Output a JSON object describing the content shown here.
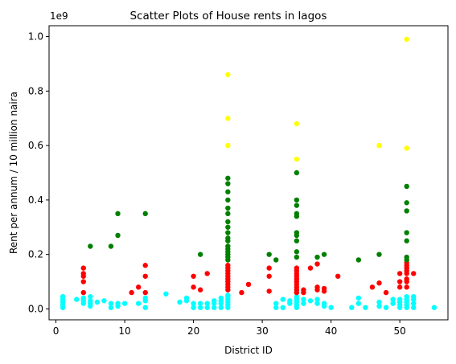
{
  "chart_data": {
    "type": "scatter",
    "title": "Scatter Plots of House rents in lagos",
    "xlabel": "District ID",
    "ylabel": "Rent per annum / 10 million naira",
    "y_offset_text": "1e9",
    "xlim": [
      -1,
      57
    ],
    "ylim": [
      -0.04,
      1.04
    ],
    "xticks": [
      0,
      10,
      20,
      30,
      40,
      50
    ],
    "yticks": [
      0.0,
      0.2,
      0.4,
      0.6,
      0.8,
      1.0
    ],
    "ytick_labels": [
      "0.0",
      "0.2",
      "0.4",
      "0.6",
      "0.8",
      "1.0"
    ],
    "grid": false,
    "legend": "none",
    "series": [
      {
        "color": "#00ffff",
        "points": [
          [
            1,
            0.005
          ],
          [
            1,
            0.015
          ],
          [
            1,
            0.025
          ],
          [
            1,
            0.035
          ],
          [
            1,
            0.045
          ],
          [
            3,
            0.035
          ],
          [
            4,
            0.02
          ],
          [
            4,
            0.03
          ],
          [
            4,
            0.04
          ],
          [
            5,
            0.01
          ],
          [
            5,
            0.02
          ],
          [
            5,
            0.03
          ],
          [
            5,
            0.045
          ],
          [
            6,
            0.025
          ],
          [
            7,
            0.03
          ],
          [
            8,
            0.005
          ],
          [
            8,
            0.02
          ],
          [
            9,
            0.01
          ],
          [
            9,
            0.02
          ],
          [
            10,
            0.02
          ],
          [
            12,
            0.02
          ],
          [
            13,
            0.005
          ],
          [
            13,
            0.03
          ],
          [
            13,
            0.04
          ],
          [
            16,
            0.055
          ],
          [
            18,
            0.025
          ],
          [
            19,
            0.03
          ],
          [
            19,
            0.04
          ],
          [
            20,
            0.005
          ],
          [
            20,
            0.02
          ],
          [
            21,
            0.005
          ],
          [
            21,
            0.02
          ],
          [
            22,
            0.005
          ],
          [
            22,
            0.02
          ],
          [
            23,
            0.005
          ],
          [
            23,
            0.02
          ],
          [
            23,
            0.03
          ],
          [
            24,
            0.005
          ],
          [
            24,
            0.02
          ],
          [
            24,
            0.03
          ],
          [
            24,
            0.04
          ],
          [
            25,
            0.005
          ],
          [
            25,
            0.015
          ],
          [
            25,
            0.025
          ],
          [
            25,
            0.035
          ],
          [
            25,
            0.045
          ],
          [
            25,
            0.05
          ],
          [
            32,
            0.005
          ],
          [
            32,
            0.02
          ],
          [
            33,
            0.005
          ],
          [
            33,
            0.035
          ],
          [
            34,
            0.02
          ],
          [
            34,
            0.03
          ],
          [
            35,
            0.005
          ],
          [
            35,
            0.015
          ],
          [
            35,
            0.025
          ],
          [
            35,
            0.035
          ],
          [
            35,
            0.045
          ],
          [
            36,
            0.02
          ],
          [
            36,
            0.035
          ],
          [
            37,
            0.03
          ],
          [
            38,
            0.02
          ],
          [
            38,
            0.035
          ],
          [
            39,
            0.01
          ],
          [
            39,
            0.02
          ],
          [
            40,
            0.005
          ],
          [
            43,
            0.005
          ],
          [
            44,
            0.02
          ],
          [
            44,
            0.04
          ],
          [
            45,
            0.005
          ],
          [
            47,
            0.01
          ],
          [
            47,
            0.025
          ],
          [
            48,
            0.005
          ],
          [
            49,
            0.02
          ],
          [
            49,
            0.035
          ],
          [
            50,
            0.005
          ],
          [
            50,
            0.015
          ],
          [
            50,
            0.025
          ],
          [
            50,
            0.035
          ],
          [
            51,
            0.005
          ],
          [
            51,
            0.015
          ],
          [
            51,
            0.025
          ],
          [
            51,
            0.035
          ],
          [
            51,
            0.045
          ],
          [
            52,
            0.005
          ],
          [
            52,
            0.02
          ],
          [
            52,
            0.035
          ],
          [
            52,
            0.045
          ],
          [
            55,
            0.005
          ]
        ]
      },
      {
        "color": "#ff0000",
        "points": [
          [
            4,
            0.06
          ],
          [
            4,
            0.1
          ],
          [
            4,
            0.12
          ],
          [
            4,
            0.13
          ],
          [
            4,
            0.15
          ],
          [
            11,
            0.06
          ],
          [
            12,
            0.08
          ],
          [
            13,
            0.06
          ],
          [
            13,
            0.12
          ],
          [
            13,
            0.16
          ],
          [
            20,
            0.08
          ],
          [
            20,
            0.12
          ],
          [
            21,
            0.07
          ],
          [
            22,
            0.13
          ],
          [
            25,
            0.07
          ],
          [
            25,
            0.08
          ],
          [
            25,
            0.09
          ],
          [
            25,
            0.1
          ],
          [
            25,
            0.11
          ],
          [
            25,
            0.12
          ],
          [
            25,
            0.13
          ],
          [
            25,
            0.14
          ],
          [
            25,
            0.15
          ],
          [
            25,
            0.16
          ],
          [
            27,
            0.06
          ],
          [
            28,
            0.09
          ],
          [
            31,
            0.065
          ],
          [
            31,
            0.12
          ],
          [
            31,
            0.15
          ],
          [
            35,
            0.06
          ],
          [
            35,
            0.07
          ],
          [
            35,
            0.08
          ],
          [
            35,
            0.09
          ],
          [
            35,
            0.1
          ],
          [
            35,
            0.11
          ],
          [
            35,
            0.12
          ],
          [
            35,
            0.13
          ],
          [
            35,
            0.14
          ],
          [
            35,
            0.15
          ],
          [
            36,
            0.06
          ],
          [
            36,
            0.07
          ],
          [
            37,
            0.15
          ],
          [
            38,
            0.07
          ],
          [
            38,
            0.08
          ],
          [
            38,
            0.165
          ],
          [
            39,
            0.065
          ],
          [
            39,
            0.075
          ],
          [
            41,
            0.12
          ],
          [
            46,
            0.08
          ],
          [
            47,
            0.095
          ],
          [
            48,
            0.06
          ],
          [
            50,
            0.08
          ],
          [
            50,
            0.1
          ],
          [
            50,
            0.13
          ],
          [
            51,
            0.08
          ],
          [
            51,
            0.1
          ],
          [
            51,
            0.11
          ],
          [
            51,
            0.13
          ],
          [
            51,
            0.14
          ],
          [
            51,
            0.15
          ],
          [
            51,
            0.16
          ],
          [
            51,
            0.17
          ],
          [
            52,
            0.13
          ]
        ]
      },
      {
        "color": "#008000",
        "points": [
          [
            5,
            0.23
          ],
          [
            8,
            0.23
          ],
          [
            9,
            0.27
          ],
          [
            9,
            0.35
          ],
          [
            13,
            0.35
          ],
          [
            21,
            0.2
          ],
          [
            25,
            0.18
          ],
          [
            25,
            0.19
          ],
          [
            25,
            0.2
          ],
          [
            25,
            0.21
          ],
          [
            25,
            0.22
          ],
          [
            25,
            0.23
          ],
          [
            25,
            0.25
          ],
          [
            25,
            0.26
          ],
          [
            25,
            0.28
          ],
          [
            25,
            0.3
          ],
          [
            25,
            0.32
          ],
          [
            25,
            0.35
          ],
          [
            25,
            0.37
          ],
          [
            25,
            0.4
          ],
          [
            25,
            0.43
          ],
          [
            25,
            0.46
          ],
          [
            25,
            0.48
          ],
          [
            31,
            0.2
          ],
          [
            32,
            0.18
          ],
          [
            35,
            0.19
          ],
          [
            35,
            0.21
          ],
          [
            35,
            0.25
          ],
          [
            35,
            0.27
          ],
          [
            35,
            0.28
          ],
          [
            35,
            0.34
          ],
          [
            35,
            0.35
          ],
          [
            35,
            0.38
          ],
          [
            35,
            0.4
          ],
          [
            35,
            0.5
          ],
          [
            38,
            0.19
          ],
          [
            39,
            0.2
          ],
          [
            44,
            0.18
          ],
          [
            47,
            0.2
          ],
          [
            51,
            0.18
          ],
          [
            51,
            0.19
          ],
          [
            51,
            0.25
          ],
          [
            51,
            0.28
          ],
          [
            51,
            0.36
          ],
          [
            51,
            0.39
          ],
          [
            51,
            0.45
          ]
        ]
      },
      {
        "color": "#ffff00",
        "points": [
          [
            25,
            0.6
          ],
          [
            25,
            0.7
          ],
          [
            25,
            0.86
          ],
          [
            35,
            0.55
          ],
          [
            35,
            0.68
          ],
          [
            47,
            0.6
          ],
          [
            51,
            0.59
          ],
          [
            51,
            0.99
          ]
        ]
      }
    ]
  }
}
